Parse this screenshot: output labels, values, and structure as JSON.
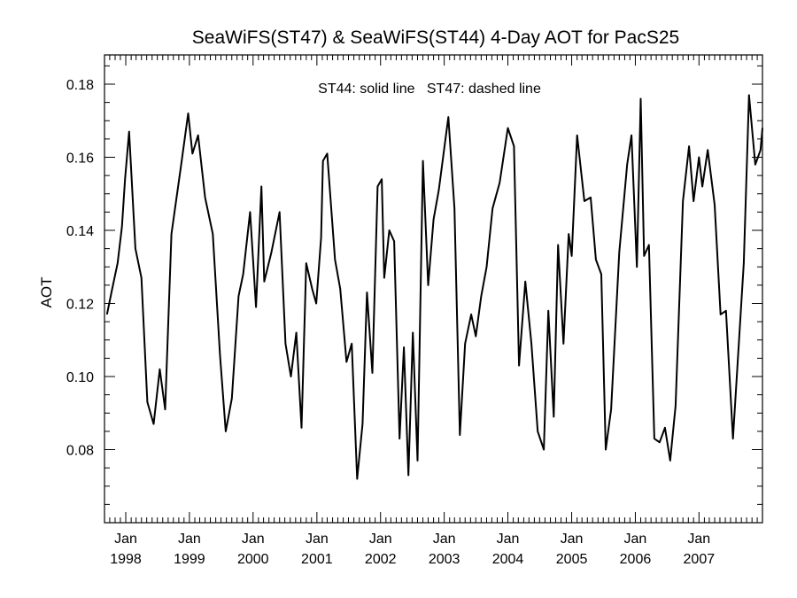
{
  "chart_data": {
    "type": "line",
    "title": "SeaWiFS(ST47) & SeaWiFS(ST44) 4-Day AOT for PacS25",
    "annotation": "ST44: solid line   ST47: dashed line",
    "xlabel": "",
    "ylabel": "AOT",
    "xlim": [
      "1997-09-01",
      "2007-12-31"
    ],
    "ylim": [
      0.06,
      0.188
    ],
    "y_ticks": [
      0.08,
      0.1,
      0.12,
      0.14,
      0.16,
      0.18
    ],
    "y_tick_labels": [
      "0.08",
      "0.10",
      "0.12",
      "0.14",
      "0.16",
      "0.18"
    ],
    "x_tick_dates": [
      "1998-01-01",
      "1999-01-01",
      "2000-01-01",
      "2001-01-01",
      "2002-01-01",
      "2003-01-01",
      "2004-01-01",
      "2005-01-01",
      "2006-01-01",
      "2007-01-01"
    ],
    "x_tick_labels": [
      {
        "month": "Jan",
        "year": "1998"
      },
      {
        "month": "Jan",
        "year": "1999"
      },
      {
        "month": "Jan",
        "year": "2000"
      },
      {
        "month": "Jan",
        "year": "2001"
      },
      {
        "month": "Jan",
        "year": "2002"
      },
      {
        "month": "Jan",
        "year": "2003"
      },
      {
        "month": "Jan",
        "year": "2004"
      },
      {
        "month": "Jan",
        "year": "2005"
      },
      {
        "month": "Jan",
        "year": "2006"
      },
      {
        "month": "Jan",
        "year": "2007"
      }
    ],
    "grid": false,
    "series": [
      {
        "style": "solid",
        "color": "#000000",
        "points": [
          [
            "1997-09-15",
            0.117
          ],
          [
            "1997-10-15",
            0.124
          ],
          [
            "1997-11-15",
            0.131
          ],
          [
            "1997-12-10",
            0.141
          ],
          [
            "1997-12-28",
            0.154
          ],
          [
            "1998-01-20",
            0.167
          ],
          [
            "1998-02-25",
            0.135
          ],
          [
            "1998-04-01",
            0.127
          ],
          [
            "1998-05-05",
            0.093
          ],
          [
            "1998-06-10",
            0.087
          ],
          [
            "1998-07-15",
            0.102
          ],
          [
            "1998-08-15",
            0.091
          ],
          [
            "1998-09-20",
            0.139
          ],
          [
            "1998-11-15",
            0.158
          ],
          [
            "1998-12-25",
            0.172
          ],
          [
            "1999-01-18",
            0.161
          ],
          [
            "1999-02-20",
            0.166
          ],
          [
            "1999-04-01",
            0.149
          ],
          [
            "1999-05-15",
            0.139
          ],
          [
            "1999-06-25",
            0.106
          ],
          [
            "1999-07-28",
            0.085
          ],
          [
            "1999-09-01",
            0.094
          ],
          [
            "1999-10-10",
            0.122
          ],
          [
            "1999-11-05",
            0.128
          ],
          [
            "1999-12-15",
            0.145
          ],
          [
            "2000-01-18",
            0.119
          ],
          [
            "2000-02-18",
            0.152
          ],
          [
            "2000-03-05",
            0.126
          ],
          [
            "2000-04-15",
            0.134
          ],
          [
            "2000-06-01",
            0.145
          ],
          [
            "2000-07-05",
            0.109
          ],
          [
            "2000-08-05",
            0.1
          ],
          [
            "2000-09-05",
            0.112
          ],
          [
            "2000-10-05",
            0.086
          ],
          [
            "2000-11-01",
            0.131
          ],
          [
            "2000-12-05",
            0.124
          ],
          [
            "2000-12-28",
            0.12
          ],
          [
            "2001-01-25",
            0.138
          ],
          [
            "2001-02-05",
            0.159
          ],
          [
            "2001-03-01",
            0.161
          ],
          [
            "2001-04-15",
            0.132
          ],
          [
            "2001-05-15",
            0.124
          ],
          [
            "2001-06-20",
            0.104
          ],
          [
            "2001-07-20",
            0.109
          ],
          [
            "2001-08-20",
            0.072
          ],
          [
            "2001-09-20",
            0.087
          ],
          [
            "2001-10-15",
            0.123
          ],
          [
            "2001-11-15",
            0.101
          ],
          [
            "2001-12-15",
            0.152
          ],
          [
            "2002-01-08",
            0.154
          ],
          [
            "2002-01-22",
            0.127
          ],
          [
            "2002-02-20",
            0.14
          ],
          [
            "2002-03-20",
            0.137
          ],
          [
            "2002-04-20",
            0.083
          ],
          [
            "2002-05-15",
            0.108
          ],
          [
            "2002-06-10",
            0.073
          ],
          [
            "2002-07-05",
            0.112
          ],
          [
            "2002-08-01",
            0.077
          ],
          [
            "2002-09-01",
            0.159
          ],
          [
            "2002-10-01",
            0.125
          ],
          [
            "2002-11-01",
            0.143
          ],
          [
            "2002-12-01",
            0.151
          ],
          [
            "2003-01-25",
            0.171
          ],
          [
            "2003-03-01",
            0.146
          ],
          [
            "2003-04-01",
            0.084
          ],
          [
            "2003-05-01",
            0.109
          ],
          [
            "2003-06-05",
            0.117
          ],
          [
            "2003-07-01",
            0.111
          ],
          [
            "2003-08-01",
            0.122
          ],
          [
            "2003-09-01",
            0.13
          ],
          [
            "2003-10-05",
            0.146
          ],
          [
            "2003-11-15",
            0.153
          ],
          [
            "2004-01-01",
            0.168
          ],
          [
            "2004-02-05",
            0.163
          ],
          [
            "2004-03-05",
            0.103
          ],
          [
            "2004-04-10",
            0.126
          ],
          [
            "2004-05-15",
            0.109
          ],
          [
            "2004-06-20",
            0.085
          ],
          [
            "2004-07-25",
            0.08
          ],
          [
            "2004-08-20",
            0.118
          ],
          [
            "2004-09-20",
            0.089
          ],
          [
            "2004-10-15",
            0.136
          ],
          [
            "2004-11-15",
            0.109
          ],
          [
            "2004-12-15",
            0.139
          ],
          [
            "2005-01-01",
            0.133
          ],
          [
            "2005-02-01",
            0.166
          ],
          [
            "2005-03-15",
            0.148
          ],
          [
            "2005-04-20",
            0.149
          ],
          [
            "2005-05-20",
            0.132
          ],
          [
            "2005-06-20",
            0.128
          ],
          [
            "2005-07-15",
            0.08
          ],
          [
            "2005-08-15",
            0.091
          ],
          [
            "2005-10-01",
            0.134
          ],
          [
            "2005-11-15",
            0.158
          ],
          [
            "2005-12-10",
            0.166
          ],
          [
            "2006-01-10",
            0.13
          ],
          [
            "2006-02-01",
            0.176
          ],
          [
            "2006-02-20",
            0.133
          ],
          [
            "2006-03-20",
            0.136
          ],
          [
            "2006-04-20",
            0.083
          ],
          [
            "2006-05-20",
            0.082
          ],
          [
            "2006-06-20",
            0.086
          ],
          [
            "2006-07-20",
            0.077
          ],
          [
            "2006-08-20",
            0.092
          ],
          [
            "2006-10-01",
            0.148
          ],
          [
            "2006-11-05",
            0.163
          ],
          [
            "2006-12-01",
            0.148
          ],
          [
            "2007-01-01",
            0.16
          ],
          [
            "2007-01-20",
            0.152
          ],
          [
            "2007-02-20",
            0.162
          ],
          [
            "2007-04-01",
            0.147
          ],
          [
            "2007-05-05",
            0.117
          ],
          [
            "2007-06-05",
            0.118
          ],
          [
            "2007-07-15",
            0.083
          ],
          [
            "2007-09-15",
            0.131
          ],
          [
            "2007-10-15",
            0.177
          ],
          [
            "2007-11-20",
            0.158
          ],
          [
            "2007-12-20",
            0.162
          ],
          [
            "2007-12-31",
            0.168
          ]
        ]
      }
    ]
  }
}
